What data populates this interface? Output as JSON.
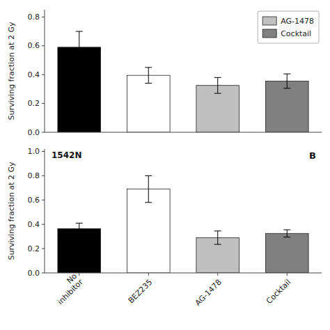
{
  "chart_data": [
    {
      "type": "bar",
      "categories": [
        null,
        null,
        null,
        null
      ],
      "series": [
        {
          "name": null,
          "color": "#000000",
          "values": [
            0.59,
            null,
            null,
            null
          ],
          "errors": [
            0.11,
            null,
            null,
            null
          ]
        },
        {
          "name": null,
          "color": "#ffffff",
          "values": [
            null,
            0.395,
            null,
            null
          ],
          "errors": [
            null,
            0.055,
            null,
            null
          ]
        },
        {
          "name": "AG-1478",
          "color": "#c0c0c0",
          "values": [
            null,
            null,
            0.325,
            null
          ],
          "errors": [
            null,
            null,
            0.055,
            null
          ]
        },
        {
          "name": "Cocktail",
          "color": "#808080",
          "values": [
            null,
            null,
            null,
            0.355
          ],
          "errors": [
            null,
            null,
            null,
            0.05
          ]
        }
      ],
      "y_label": "Surviving fraction at 2 Gy",
      "ylim": [
        0.0,
        0.85
      ],
      "yticks": [
        {
          "value": 0,
          "label": "0.0"
        },
        0.2,
        0.4,
        0.6,
        0.8
      ],
      "tick_labels": "y",
      "legend": "upper right"
    },
    {
      "type": "bar",
      "categories": [
        "No\ninhibitor",
        "BEZ235",
        "AG-1478",
        "Cocktail"
      ],
      "values": [
        0.365,
        0.69,
        0.29,
        0.325
      ],
      "errors": [
        0.045,
        0.11,
        0.055,
        0.03
      ],
      "colors": [
        "#000000",
        "#ffffff",
        "#c0c0c0",
        "#808080"
      ],
      "y_label": "Surviving fraction at 2 Gy",
      "ylim": [
        0.0,
        1.02
      ],
      "yticks": [
        {
          "value": 0,
          "label": "0.0"
        },
        0.2,
        0.4,
        0.6,
        0.8,
        {
          "value": 1,
          "label": "1.0"
        }
      ],
      "annotations": [
        "1542N",
        "B"
      ]
    }
  ]
}
